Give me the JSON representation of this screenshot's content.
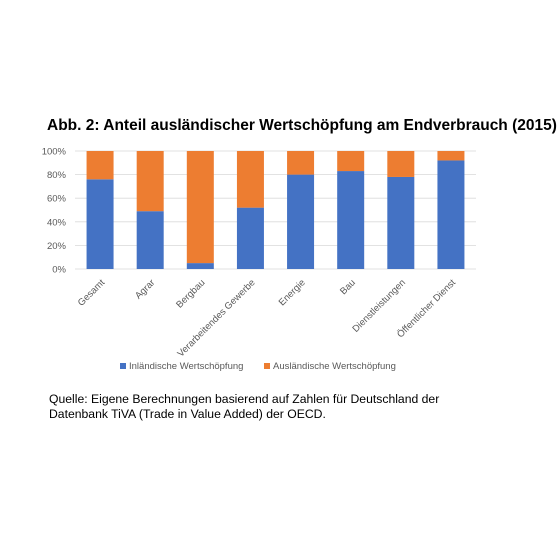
{
  "chart_data": {
    "type": "bar",
    "stacked": true,
    "title": "Abb. 2: Anteil ausländischer Wertschöpfung am Endverbrauch (2015)",
    "categories": [
      "Gesamt",
      "Agrar",
      "Bergbau",
      "Verarbeitendes Gewerbe",
      "Energie",
      "Bau",
      "Dienstleistungen",
      "Öffentlicher Dienst"
    ],
    "series": [
      {
        "name": "Inländische Wertschöpfung",
        "color": "#4472c4",
        "values": [
          76,
          49,
          5,
          52,
          80,
          83,
          78,
          92
        ]
      },
      {
        "name": "Ausländische Wertschöpfung",
        "color": "#ed7d31",
        "values": [
          24,
          51,
          95,
          48,
          20,
          17,
          22,
          8
        ]
      }
    ],
    "ylim": [
      0,
      100
    ],
    "yticks": [
      "0%",
      "20%",
      "40%",
      "60%",
      "80%",
      "100%"
    ],
    "grid": true,
    "legend": "bottom"
  },
  "source": "Quelle: Eigene Berechnungen basierend auf Zahlen für Deutschland der Datenbank TiVA (Trade in Value Added) der OECD."
}
